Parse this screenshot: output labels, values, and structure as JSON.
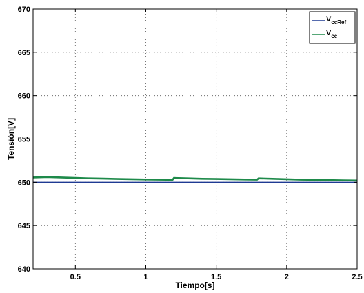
{
  "chart_data": {
    "type": "line",
    "xlabel": "Tiempo[s]",
    "ylabel": "Tensión[V]",
    "xlim": [
      0.2,
      2.5
    ],
    "ylim": [
      640,
      670
    ],
    "xticks": [
      "0.5",
      "1",
      "1.5",
      "2",
      "2.5"
    ],
    "xtick_values": [
      0.5,
      1,
      1.5,
      2,
      2.5
    ],
    "yticks": [
      "640",
      "645",
      "650",
      "655",
      "660",
      "665",
      "670"
    ],
    "ytick_values": [
      640,
      645,
      650,
      655,
      660,
      665,
      670
    ],
    "grid": true,
    "legend_position": "top-right",
    "series": [
      {
        "name": "VccRef",
        "legend_main": "V",
        "legend_sub": "ccRef",
        "color": "#1f3a93",
        "x": [
          0.2,
          2.5
        ],
        "y": [
          650.0,
          650.0
        ]
      },
      {
        "name": "Vcc",
        "legend_main": "V",
        "legend_sub": "cc",
        "color": "#1e8a4a",
        "x": [
          0.2,
          0.3,
          0.4,
          0.5,
          0.6,
          0.7,
          0.8,
          0.9,
          1.0,
          1.1,
          1.19,
          1.2,
          1.3,
          1.4,
          1.5,
          1.6,
          1.7,
          1.79,
          1.8,
          1.9,
          2.0,
          2.1,
          2.2,
          2.3,
          2.4,
          2.5
        ],
        "y": [
          650.55,
          650.6,
          650.55,
          650.5,
          650.45,
          650.42,
          650.38,
          650.35,
          650.32,
          650.3,
          650.28,
          650.5,
          650.45,
          650.4,
          650.38,
          650.35,
          650.32,
          650.3,
          650.45,
          650.4,
          650.35,
          650.3,
          650.28,
          650.25,
          650.22,
          650.2
        ]
      }
    ]
  }
}
